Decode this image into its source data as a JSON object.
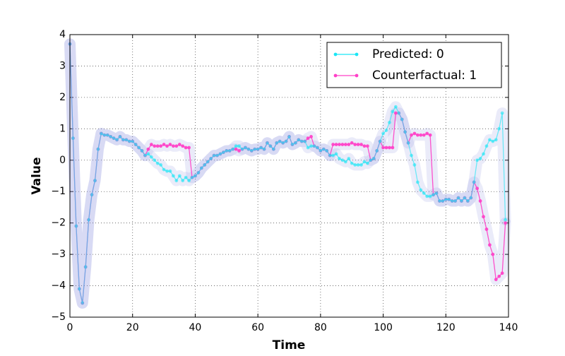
{
  "chart_data": {
    "type": "line",
    "xlabel": "Time",
    "ylabel": "Value",
    "x": [
      0,
      1,
      2,
      3,
      4,
      5,
      6,
      7,
      8,
      9,
      10,
      11,
      12,
      13,
      14,
      15,
      16,
      17,
      18,
      19,
      20,
      21,
      22,
      23,
      24,
      25,
      26,
      27,
      28,
      29,
      30,
      31,
      32,
      33,
      34,
      35,
      36,
      37,
      38,
      39,
      40,
      41,
      42,
      43,
      44,
      45,
      46,
      47,
      48,
      49,
      50,
      51,
      52,
      53,
      54,
      55,
      56,
      57,
      58,
      59,
      60,
      61,
      62,
      63,
      64,
      65,
      66,
      67,
      68,
      69,
      70,
      71,
      72,
      73,
      74,
      75,
      76,
      77,
      78,
      79,
      80,
      81,
      82,
      83,
      84,
      85,
      86,
      87,
      88,
      89,
      90,
      91,
      92,
      93,
      94,
      95,
      96,
      97,
      98,
      99,
      100,
      101,
      102,
      103,
      104,
      105,
      106,
      107,
      108,
      109,
      110,
      111,
      112,
      113,
      114,
      115,
      116,
      117,
      118,
      119,
      120,
      121,
      122,
      123,
      124,
      125,
      126,
      127,
      128,
      129,
      130,
      131,
      132,
      133,
      134,
      135,
      136,
      137,
      138,
      139
    ],
    "series": [
      {
        "name": "Predicted: 0",
        "color": "#19e6f5",
        "values": [
          3.7,
          0.7,
          -2.1,
          -4.1,
          -4.55,
          -3.4,
          -1.9,
          -1.1,
          -0.65,
          0.35,
          0.85,
          0.8,
          0.8,
          0.75,
          0.7,
          0.65,
          0.75,
          0.65,
          0.65,
          0.6,
          0.6,
          0.5,
          0.4,
          0.3,
          0.15,
          0.2,
          0.1,
          0.0,
          -0.1,
          -0.15,
          -0.3,
          -0.35,
          -0.35,
          -0.5,
          -0.65,
          -0.5,
          -0.65,
          -0.55,
          -0.65,
          -0.55,
          -0.5,
          -0.4,
          -0.25,
          -0.15,
          -0.05,
          0.05,
          0.15,
          0.15,
          0.2,
          0.25,
          0.3,
          0.3,
          0.35,
          0.45,
          0.45,
          0.35,
          0.4,
          0.35,
          0.3,
          0.35,
          0.35,
          0.4,
          0.35,
          0.55,
          0.45,
          0.35,
          0.55,
          0.6,
          0.55,
          0.6,
          0.75,
          0.5,
          0.55,
          0.65,
          0.6,
          0.6,
          0.4,
          0.45,
          0.45,
          0.4,
          0.3,
          0.35,
          0.3,
          0.15,
          0.15,
          0.2,
          0.05,
          0.0,
          -0.05,
          0.05,
          -0.1,
          -0.15,
          -0.15,
          -0.15,
          -0.05,
          -0.1,
          0.0,
          0.05,
          0.3,
          0.6,
          0.85,
          0.95,
          1.2,
          1.55,
          1.7,
          1.5,
          1.3,
          0.9,
          0.55,
          0.15,
          -0.15,
          -0.7,
          -0.95,
          -1.05,
          -1.15,
          -1.15,
          -1.1,
          -1.05,
          -1.3,
          -1.3,
          -1.25,
          -1.25,
          -1.3,
          -1.3,
          -1.2,
          -1.3,
          -1.2,
          -1.3,
          -1.2,
          -0.7,
          0.0,
          0.05,
          0.2,
          0.45,
          0.65,
          0.6,
          0.65,
          1.0,
          1.5,
          -1.9
        ]
      },
      {
        "name": "Counterfactual: 1",
        "color": "#ff40c8",
        "values": [
          3.7,
          0.7,
          -2.1,
          -4.1,
          -4.55,
          -3.4,
          -1.9,
          -1.1,
          -0.65,
          0.35,
          0.85,
          0.8,
          0.8,
          0.75,
          0.7,
          0.65,
          0.75,
          0.65,
          0.65,
          0.6,
          0.6,
          0.5,
          0.4,
          0.3,
          0.15,
          0.35,
          0.5,
          0.45,
          0.45,
          0.45,
          0.5,
          0.45,
          0.5,
          0.45,
          0.45,
          0.5,
          0.45,
          0.4,
          0.4,
          -0.55,
          -0.5,
          -0.4,
          -0.25,
          -0.15,
          -0.05,
          0.05,
          0.15,
          0.15,
          0.2,
          0.25,
          0.3,
          0.3,
          0.35,
          0.35,
          0.3,
          0.35,
          0.4,
          0.35,
          0.3,
          0.35,
          0.35,
          0.4,
          0.35,
          0.55,
          0.45,
          0.35,
          0.55,
          0.6,
          0.55,
          0.6,
          0.75,
          0.5,
          0.55,
          0.65,
          0.6,
          0.6,
          0.7,
          0.75,
          0.45,
          0.4,
          0.3,
          0.35,
          0.3,
          0.15,
          0.5,
          0.5,
          0.5,
          0.5,
          0.5,
          0.5,
          0.55,
          0.5,
          0.5,
          0.5,
          0.45,
          0.45,
          0.0,
          0.05,
          0.3,
          0.6,
          0.4,
          0.4,
          0.4,
          0.4,
          1.5,
          1.5,
          1.3,
          0.9,
          0.55,
          0.8,
          0.85,
          0.8,
          0.8,
          0.8,
          0.85,
          0.8,
          -1.1,
          -1.05,
          -1.3,
          -1.3,
          -1.25,
          -1.25,
          -1.3,
          -1.3,
          -1.2,
          -1.3,
          -1.2,
          -1.3,
          -1.2,
          -0.7,
          -0.9,
          -1.3,
          -1.8,
          -2.2,
          -2.7,
          -3.0,
          -3.8,
          -3.7,
          -3.6,
          -2.0
        ]
      }
    ],
    "xlim": [
      0,
      140
    ],
    "xticks": [
      0,
      20,
      40,
      60,
      80,
      100,
      120,
      140
    ],
    "ylim": [
      -5,
      4
    ],
    "yticks": [
      {
        "value": -5,
        "label": "−5"
      },
      {
        "value": -4,
        "label": "−4"
      },
      {
        "value": -3,
        "label": "−3"
      },
      {
        "value": -2,
        "label": "−2"
      },
      {
        "value": -1,
        "label": "−1"
      },
      0,
      1,
      2,
      3,
      4
    ],
    "grid": true,
    "legend": "upper right",
    "glow_color": "#8a8ee0"
  }
}
